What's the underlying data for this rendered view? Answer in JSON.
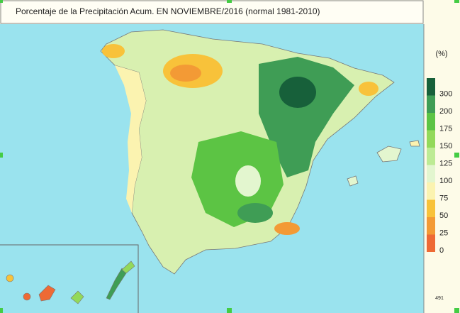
{
  "header": {
    "title": "Porcentaje de la Precipitación Acum. EN  NOVIEMBRE/2016  (normal 1981-2010)"
  },
  "legend": {
    "unit": "(%)",
    "entries": [
      {
        "label": 300,
        "color": "#17603a"
      },
      {
        "label": 200,
        "color": "#3f9d55"
      },
      {
        "label": 175,
        "color": "#5cc444"
      },
      {
        "label": 150,
        "color": "#93d95a"
      },
      {
        "label": 125,
        "color": "#bdeb94"
      },
      {
        "label": 100,
        "color": "#e3f6cf"
      },
      {
        "label": 75,
        "color": "#fbf3b0"
      },
      {
        "label": 50,
        "color": "#f8c23a"
      },
      {
        "label": 25,
        "color": "#f39a35"
      },
      {
        "label": 0,
        "color": "#ee6a35"
      }
    ]
  },
  "footer": {
    "code": "491"
  }
}
